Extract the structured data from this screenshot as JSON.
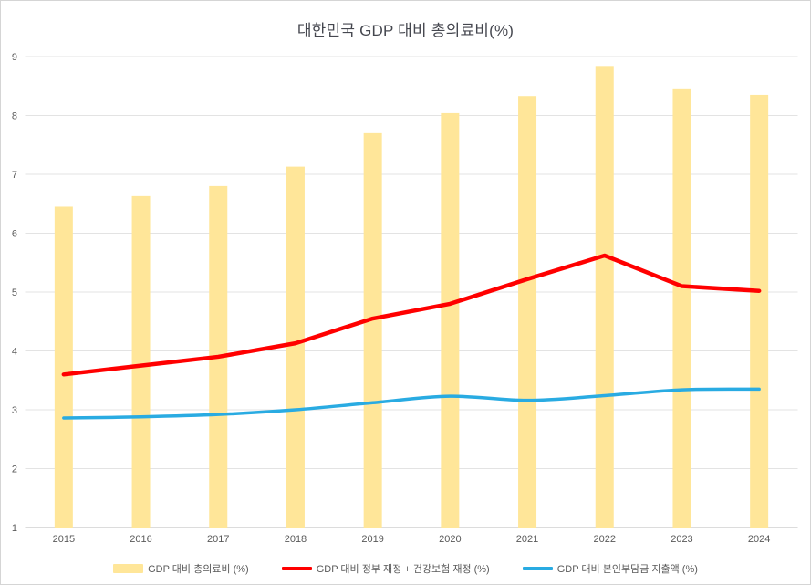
{
  "window": {
    "background": "#ffffff",
    "border_color": "#d5d5d5"
  },
  "chart_data": {
    "type": "bar",
    "subtype": "bar-with-lines-combo",
    "title": "대한민국 GDP 대비 총의료비(%)",
    "xlabel": "",
    "ylabel": "",
    "categories": [
      "2015",
      "2016",
      "2017",
      "2018",
      "2019",
      "2020",
      "2021",
      "2022",
      "2023",
      "2024"
    ],
    "series": [
      {
        "name": "GDP 대비 총의료비 (%)",
        "type": "bar",
        "color": "#FFE699",
        "values": [
          6.45,
          6.63,
          6.8,
          7.13,
          7.7,
          8.04,
          8.33,
          8.84,
          8.46,
          8.35
        ]
      },
      {
        "name": "GDP 대비 정부 재정 + 건강보험 재정 (%)",
        "type": "line",
        "color": "#FF0000",
        "line_width": 4.5,
        "smooth": false,
        "values": [
          3.6,
          3.75,
          3.9,
          4.13,
          4.55,
          4.8,
          5.22,
          5.62,
          5.1,
          5.02
        ]
      },
      {
        "name": "GDP 대비 본인부담금 지출액 (%)",
        "type": "line",
        "color": "#29ABE2",
        "line_width": 3.5,
        "smooth": true,
        "values": [
          2.86,
          2.88,
          2.92,
          3.0,
          3.12,
          3.23,
          3.16,
          3.24,
          3.34,
          3.35
        ]
      }
    ],
    "ylim": [
      1,
      9
    ],
    "yticks": [
      "1",
      "2",
      "3",
      "4",
      "5",
      "6",
      "7",
      "8",
      "9"
    ],
    "grid": true,
    "legend_position": "bottom",
    "colors": {
      "gridline": "#e3e3e3",
      "axis_line": "#c6c6c6",
      "tick_label": "#595959",
      "title": "#45474f"
    }
  }
}
